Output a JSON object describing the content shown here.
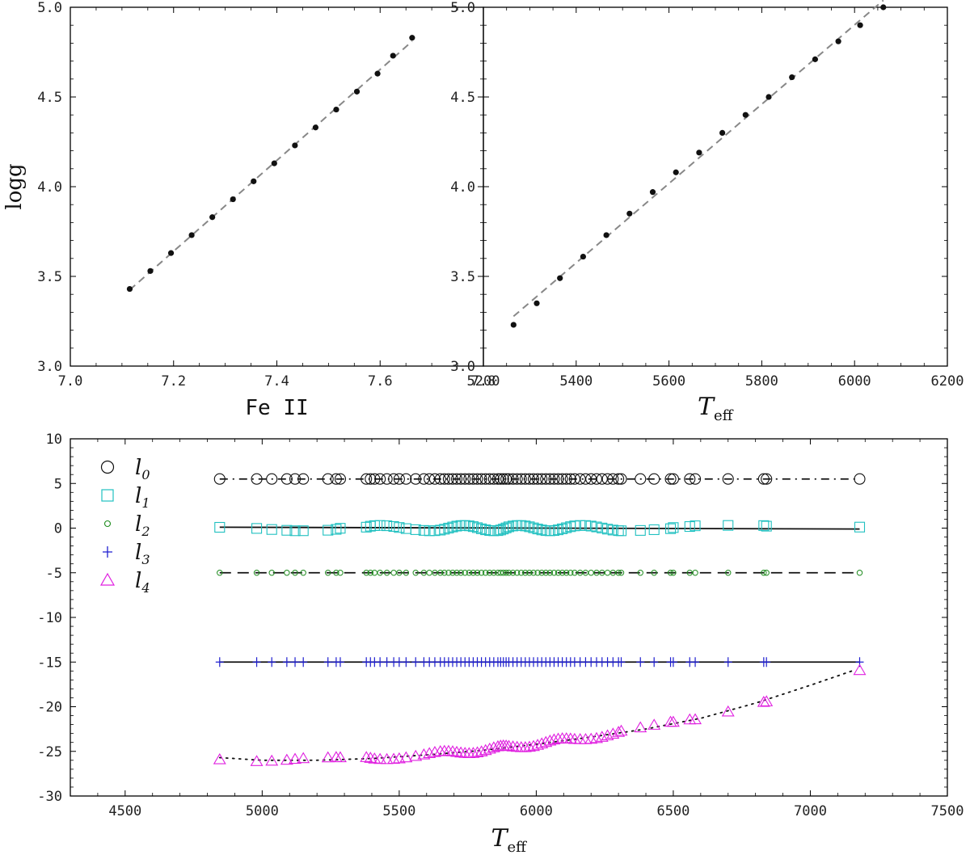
{
  "chart_data": [
    {
      "type": "scatter",
      "xlabel": "Fe II",
      "ylabel": "logg",
      "xlim": [
        7.0,
        7.8
      ],
      "ylim": [
        3.0,
        5.0
      ],
      "xticks": [
        "7.0",
        "7.2",
        "7.4",
        "7.6",
        "7.8"
      ],
      "yticks": [
        "3.0",
        "3.5",
        "4.0",
        "4.5",
        "5.0"
      ],
      "grid": false,
      "series": [
        {
          "color": "#111111",
          "marker": "dot",
          "fit_line": "dashed",
          "fit_color": "#888888",
          "x": [
            7.115,
            7.155,
            7.195,
            7.235,
            7.275,
            7.315,
            7.355,
            7.395,
            7.435,
            7.475,
            7.515,
            7.555,
            7.595,
            7.625,
            7.662
          ],
          "y": [
            3.43,
            3.53,
            3.63,
            3.73,
            3.83,
            3.93,
            4.03,
            4.13,
            4.23,
            4.33,
            4.43,
            4.53,
            4.63,
            4.73,
            4.83
          ]
        }
      ]
    },
    {
      "type": "scatter",
      "xlabel_main": "T",
      "xlabel_sub": "eff",
      "ylabel": "",
      "xlim": [
        5200,
        6200
      ],
      "ylim": [
        3.0,
        5.0
      ],
      "xticks": [
        "5200",
        "5400",
        "5600",
        "5800",
        "6000",
        "6200"
      ],
      "yticks": [
        "3.0",
        "3.5",
        "4.0",
        "4.5",
        "5.0"
      ],
      "grid": false,
      "series": [
        {
          "color": "#111111",
          "marker": "dot",
          "fit_line": "dashed",
          "fit_color": "#888888",
          "x": [
            5265,
            5315,
            5365,
            5415,
            5465,
            5515,
            5565,
            5615,
            5665,
            5715,
            5765,
            5815,
            5865,
            5915,
            5965,
            6012,
            6062
          ],
          "y": [
            3.23,
            3.35,
            3.49,
            3.61,
            3.73,
            3.85,
            3.97,
            4.08,
            4.19,
            4.3,
            4.4,
            4.5,
            4.61,
            4.71,
            4.81,
            4.9,
            5.0
          ]
        }
      ]
    },
    {
      "type": "scatter",
      "xlabel_main": "T",
      "xlabel_sub": "eff",
      "ylabel": "",
      "xlim": [
        4300,
        7500
      ],
      "ylim": [
        -30,
        10
      ],
      "xticks": [
        "4500",
        "5000",
        "5500",
        "6000",
        "6500",
        "7000",
        "7500"
      ],
      "yticks": [
        "10",
        "5",
        "0",
        "-5",
        "-10",
        "-15",
        "-20",
        "-25",
        "-30"
      ],
      "grid": false,
      "legend_position": "top-left",
      "x_common": [
        4845,
        4980,
        5035,
        5090,
        5120,
        5150,
        5240,
        5270,
        5285,
        5380,
        5395,
        5410,
        5430,
        5455,
        5480,
        5500,
        5525,
        5560,
        5590,
        5610,
        5630,
        5650,
        5665,
        5680,
        5695,
        5710,
        5725,
        5740,
        5755,
        5770,
        5785,
        5800,
        5815,
        5830,
        5845,
        5860,
        5870,
        5880,
        5890,
        5900,
        5915,
        5930,
        5945,
        5960,
        5975,
        5990,
        6005,
        6020,
        6035,
        6050,
        6065,
        6080,
        6095,
        6110,
        6125,
        6140,
        6160,
        6180,
        6200,
        6220,
        6240,
        6260,
        6280,
        6300,
        6310,
        6380,
        6430,
        6490,
        6500,
        6560,
        6580,
        6700,
        6830,
        6840,
        7180
      ],
      "series": [
        {
          "name": "l",
          "sub": "0",
          "color": "#111111",
          "marker": "circle",
          "offset": 5.5,
          "line": "dashdot",
          "line_color": "#111111"
        },
        {
          "name": "l",
          "sub": "1",
          "color": "#20c0c0",
          "marker": "square",
          "offset": 0.0,
          "line": "solid",
          "line_color": "#111111",
          "trend": [
            0.1,
            -0.1
          ]
        },
        {
          "name": "l",
          "sub": "2",
          "color": "#1e8c1e",
          "marker": "smallcircle",
          "offset": -5.0,
          "line": "dashed",
          "line_color": "#111111"
        },
        {
          "name": "l",
          "sub": "3",
          "color": "#1f1fd0",
          "marker": "plus",
          "offset": -15.0,
          "line": "solid",
          "line_color": "#111111"
        },
        {
          "name": "l",
          "sub": "4",
          "color": "#e020e0",
          "marker": "triangle",
          "offset": null,
          "line": "dotted",
          "line_color": "#111111",
          "curve": {
            "x": [
              4845,
              5000,
              5200,
              5400,
              5600,
              5800,
              6000,
              6200,
              6400,
              6600,
              6800,
              7000,
              7180
            ],
            "y": [
              -25.7,
              -26.0,
              -26.0,
              -25.8,
              -25.4,
              -24.9,
              -24.2,
              -23.4,
              -22.5,
              -21.3,
              -19.6,
              -17.6,
              -15.7
            ]
          }
        }
      ]
    }
  ]
}
